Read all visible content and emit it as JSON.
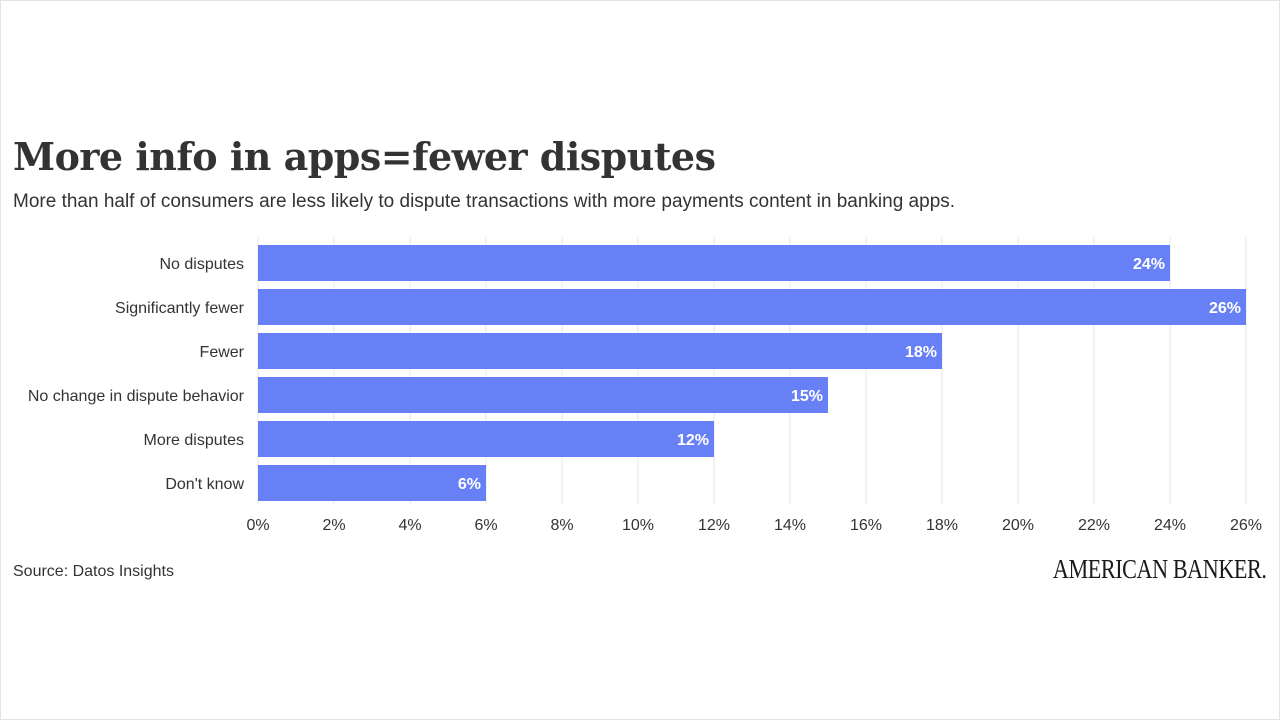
{
  "header": {
    "title": "More info in apps=fewer disputes",
    "subtitle": "More than half of consumers are less likely to dispute transactions with more payments content in banking apps."
  },
  "footer": {
    "source": "Source: Datos Insights",
    "brand": "AMERICAN BANKER."
  },
  "colors": {
    "bar": "#6780f5",
    "grid": "#e6e6e6",
    "text": "#333333",
    "label_text": "#ffffff"
  },
  "chart_data": {
    "type": "bar",
    "orientation": "horizontal",
    "categories": [
      "No disputes",
      "Significantly fewer",
      "Fewer",
      "No change in dispute behavior",
      "More disputes",
      "Don't know"
    ],
    "values": [
      24,
      26,
      18,
      15,
      12,
      6
    ],
    "data_labels": [
      "24%",
      "26%",
      "18%",
      "15%",
      "12%",
      "6%"
    ],
    "x_ticks": [
      0,
      2,
      4,
      6,
      8,
      10,
      12,
      14,
      16,
      18,
      20,
      22,
      24,
      26
    ],
    "x_tick_labels": [
      "0%",
      "2%",
      "4%",
      "6%",
      "8%",
      "10%",
      "12%",
      "14%",
      "16%",
      "18%",
      "20%",
      "22%",
      "24%",
      "26%"
    ],
    "xlim": [
      0,
      26
    ],
    "grid": true,
    "legend": "none"
  }
}
